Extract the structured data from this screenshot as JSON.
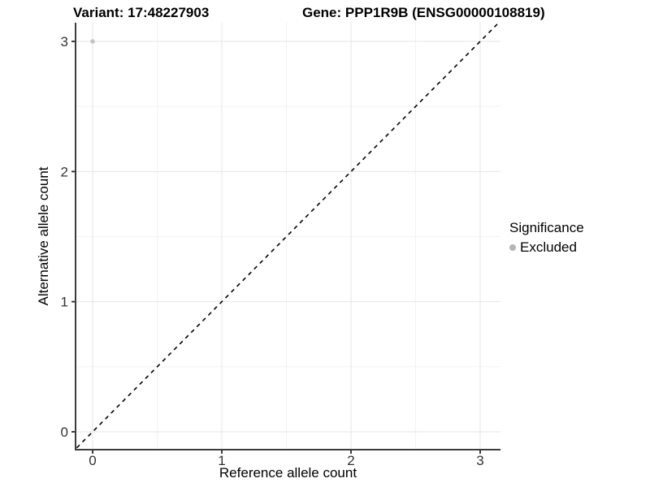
{
  "titles": {
    "variant": "Variant: 17:48227903",
    "gene": "Gene: PPP1R9B (ENSG00000108819)"
  },
  "axes": {
    "x": {
      "label": "Reference allele count"
    },
    "y": {
      "label": "Alternative allele count"
    }
  },
  "legend": {
    "title": "Significance",
    "items": [
      {
        "label": "Excluded",
        "color": "#b5b5b5"
      }
    ]
  },
  "chart_data": {
    "type": "scatter",
    "title_left": "Variant: 17:48227903",
    "title_right": "Gene: PPP1R9B (ENSG00000108819)",
    "xlabel": "Reference allele count",
    "ylabel": "Alternative allele count",
    "xlim": [
      -0.15,
      3.15
    ],
    "ylim": [
      -0.15,
      3.15
    ],
    "x_ticks": [
      0,
      1,
      2,
      3
    ],
    "y_ticks": [
      0,
      1,
      2,
      3
    ],
    "x_minor_ticks": [
      0.5,
      1.5,
      2.5
    ],
    "y_minor_ticks": [
      0.5,
      1.5,
      2.5
    ],
    "grid": "major and minor gridlines, light gray on white panel",
    "legend_position": "right",
    "series": [
      {
        "name": "Excluded",
        "color": "#c3c3c3",
        "points": [
          {
            "x": 0,
            "y": 3
          }
        ]
      }
    ],
    "reference_line": {
      "slope": 1,
      "intercept": 0,
      "style": "dashed",
      "color": "#000000"
    }
  },
  "colors": {
    "background": "#ffffff",
    "axis": "#3c3c3c",
    "tick_label": "#333333",
    "grid_major": "#e6e6e6",
    "grid_minor": "#f2f2f2",
    "point": "#c3c3c3",
    "legend_dot": "#b5b5b5",
    "dashed_line": "#000000"
  }
}
